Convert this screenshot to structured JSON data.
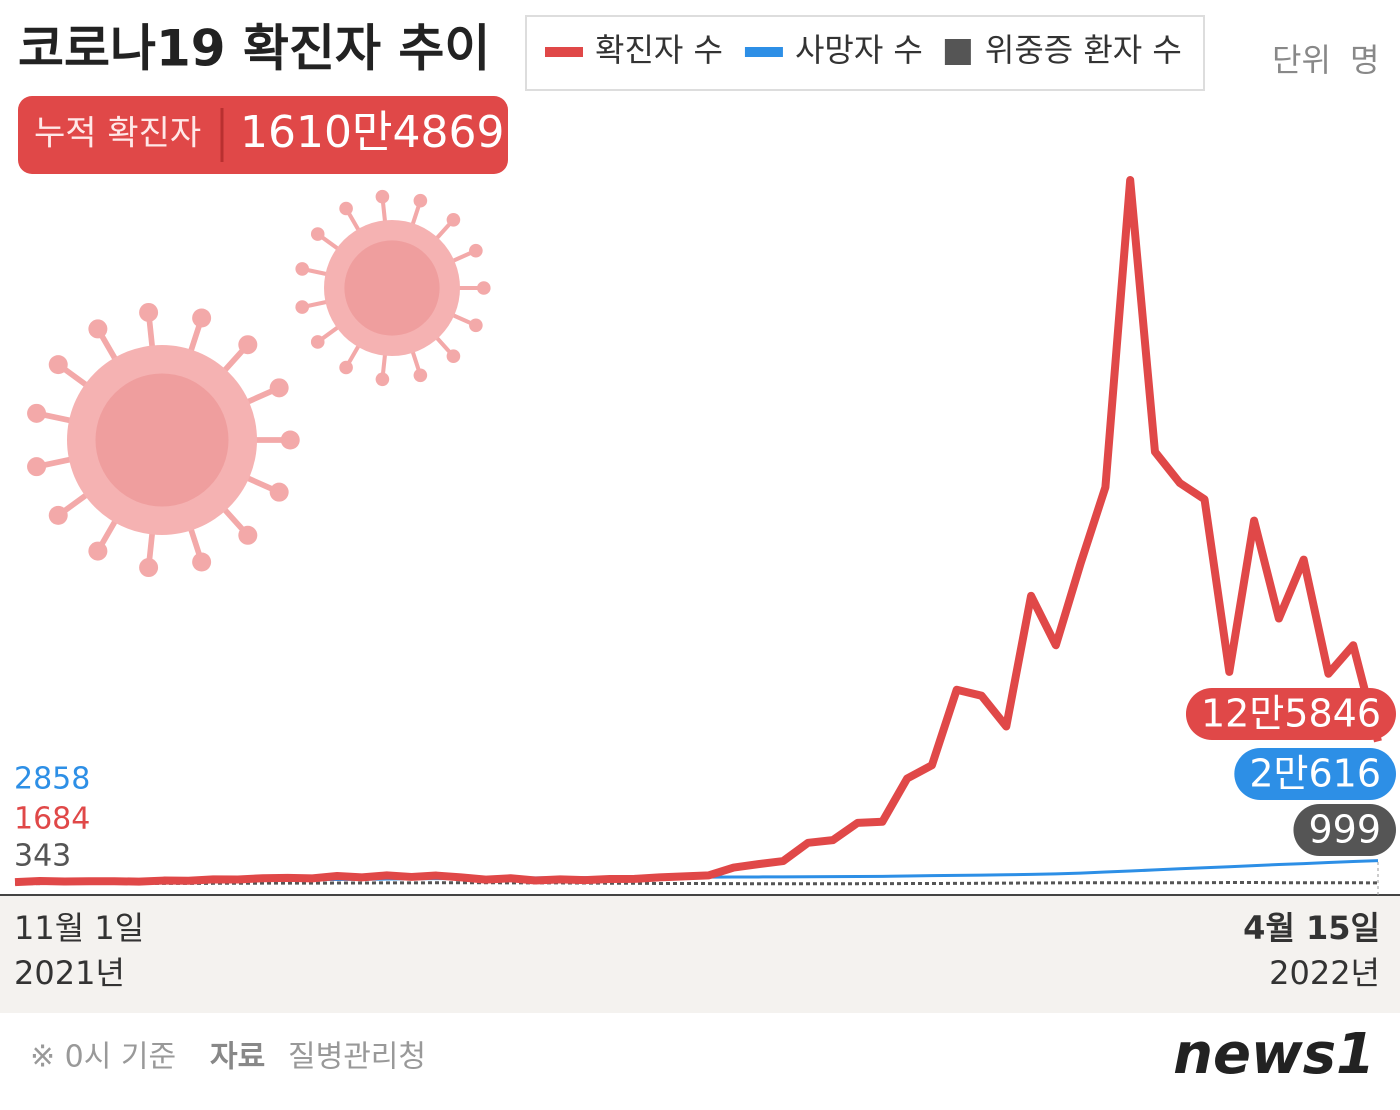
{
  "chart_data": {
    "type": "line",
    "title": "코로나19 확진자 추이",
    "unit_label": "단위",
    "unit": "명",
    "cumulative_label": "누적 확진자",
    "cumulative_value": "1610만4869",
    "categories": [
      "11월 1일",
      null,
      null,
      null,
      null,
      null,
      null,
      null,
      null,
      null,
      null,
      null,
      null,
      null,
      null,
      null,
      null,
      null,
      null,
      null,
      null,
      null,
      null,
      null,
      null,
      null,
      null,
      null,
      null,
      null,
      null,
      null,
      null,
      null,
      null,
      null,
      null,
      null,
      null,
      null,
      null,
      null,
      null,
      null,
      null,
      null,
      null,
      null,
      null,
      null,
      null,
      null,
      null,
      null,
      null,
      "4월 15일"
    ],
    "start_year": "2021년",
    "end_year": "2022년",
    "ylim": [
      0,
      647800
    ],
    "series": [
      {
        "name": "확진자 수",
        "color": "#e04848",
        "values": [
          1684,
          2667,
          2224,
          2425,
          2419,
          2125,
          3034,
          2827,
          4115,
          3925,
          5123,
          5352,
          4954,
          7022,
          5817,
          7622,
          6236,
          7456,
          5842,
          3865,
          5035,
          3129,
          4126,
          3376,
          4385,
          4542,
          5804,
          6767,
          7630,
          14518,
          17529,
          20270,
          36345,
          38691,
          53926,
          54941,
          93135,
          104829,
          171452,
          166209,
          138993,
          254327,
          210716,
          282987,
          350190,
          621328,
          381454,
          353980,
          339514,
          187213,
          320743,
          234301,
          286294,
          185566,
          210755,
          125846
        ],
        "value_labels": [
          null,
          null,
          null,
          null,
          null,
          null,
          null,
          null,
          null,
          null,
          null,
          null,
          null,
          null,
          null,
          null,
          null,
          null,
          null,
          null,
          null,
          null,
          null,
          null,
          null,
          null,
          null,
          null,
          null,
          null,
          null,
          null,
          null,
          null,
          null,
          null,
          null,
          null,
          null,
          null,
          null,
          null,
          null,
          null,
          null,
          null,
          null,
          null,
          null,
          null,
          null,
          null,
          null,
          null,
          null,
          "12만5846"
        ]
      },
      {
        "name": "사망자 수",
        "color": "#2d8fe6",
        "values": [
          2858,
          2874,
          2906,
          2951,
          3000,
          3050,
          3137,
          3230,
          3363,
          3480,
          3580,
          3705,
          3853,
          4020,
          4206,
          4391,
          4591,
          4776,
          4906,
          5071,
          5211,
          5381,
          5512,
          5623,
          5719,
          5838,
          5912,
          6000,
          6079,
          6166,
          6232,
          6312,
          6388,
          6474,
          6610,
          6753,
          7045,
          7339,
          7607,
          7873,
          8172,
          8478,
          8955,
          9646,
          10595,
          11481,
          12428,
          13432,
          14294,
          15186,
          16230,
          17235,
          18033,
          18969,
          19809,
          20616
        ],
        "value_labels": [
          null,
          null,
          null,
          null,
          null,
          null,
          null,
          null,
          null,
          null,
          null,
          null,
          null,
          null,
          null,
          null,
          null,
          null,
          null,
          null,
          null,
          null,
          null,
          null,
          null,
          null,
          null,
          null,
          null,
          null,
          null,
          null,
          null,
          null,
          null,
          null,
          null,
          null,
          null,
          null,
          null,
          null,
          null,
          null,
          null,
          null,
          null,
          null,
          null,
          null,
          null,
          null,
          null,
          null,
          null,
          "2만616"
        ]
      },
      {
        "name": "위중증 환자 수",
        "color": "#555555",
        "values": [
          343,
          378,
          460,
          473,
          485,
          495,
          514,
          522,
          612,
          647,
          733,
          752,
          774,
          840,
          906,
          964,
          1025,
          1063,
          1084,
          1102,
          1015,
          1015,
          954,
          838,
          700,
          626,
          459,
          433,
          385,
          278,
          272,
          263,
          272,
          261,
          274,
          313,
          408,
          480,
          512,
          643,
          762,
          885,
          955,
          1113,
          1158,
          1049,
          1033,
          1084,
          1104,
          1315,
          1301,
          1108,
          1099,
          1099,
          1093,
          999
        ]
      }
    ],
    "footnote": "※ 0시 기준",
    "source_label": "자료",
    "source": "질병관리청",
    "logo": "news1"
  }
}
